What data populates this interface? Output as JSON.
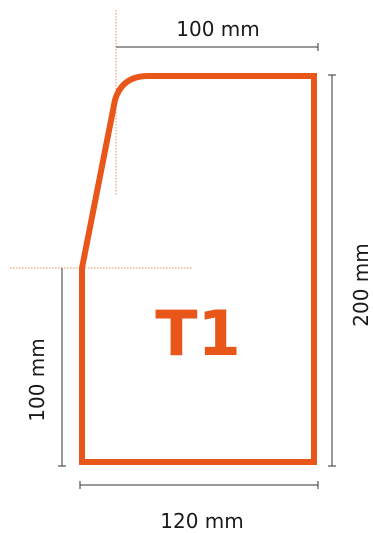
{
  "shape": {
    "label": "T1",
    "color": "#e8561a"
  },
  "dimensions": {
    "top": "100 mm",
    "right": "200 mm",
    "bottom": "120 mm",
    "left": "100 mm"
  },
  "colors": {
    "dimension_line": "#333333",
    "guide_line": "#f08a5d"
  }
}
